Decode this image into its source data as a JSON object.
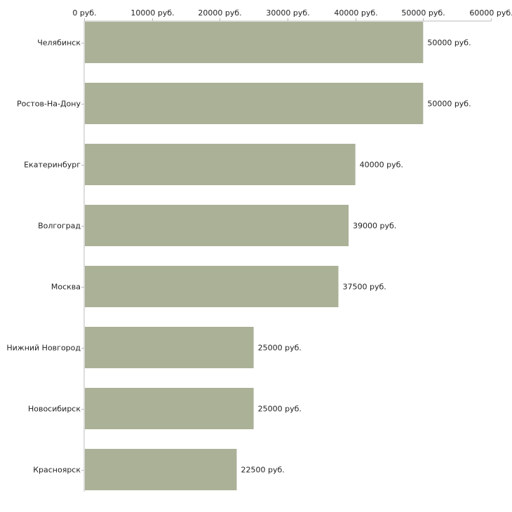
{
  "chart_data": {
    "type": "bar",
    "orientation": "horizontal",
    "title": "",
    "xlabel": "",
    "ylabel": "",
    "currency_suffix": "руб.",
    "xlim": [
      0,
      60000
    ],
    "x_ticks": [
      0,
      10000,
      20000,
      30000,
      40000,
      50000,
      60000
    ],
    "x_tick_labels": [
      "0 руб.",
      "10000 руб.",
      "20000 руб.",
      "30000 руб.",
      "40000 руб.",
      "50000 руб.",
      "60000 руб."
    ],
    "categories": [
      "Челябинск",
      "Ростов-На-Дону",
      "Екатеринбург",
      "Волгоград",
      "Москва",
      "Нижний Новгород",
      "Новосибирск",
      "Красноярск"
    ],
    "values": [
      50000,
      50000,
      40000,
      39000,
      37500,
      25000,
      25000,
      22500
    ],
    "value_labels": [
      "50000 руб.",
      "50000 руб.",
      "40000 руб.",
      "39000 руб.",
      "37500 руб.",
      "25000 руб.",
      "25000 руб.",
      "22500 руб."
    ],
    "bar_color": "#abb197",
    "axis_color": "#bbbbbb",
    "grid": false,
    "legend": "none"
  }
}
